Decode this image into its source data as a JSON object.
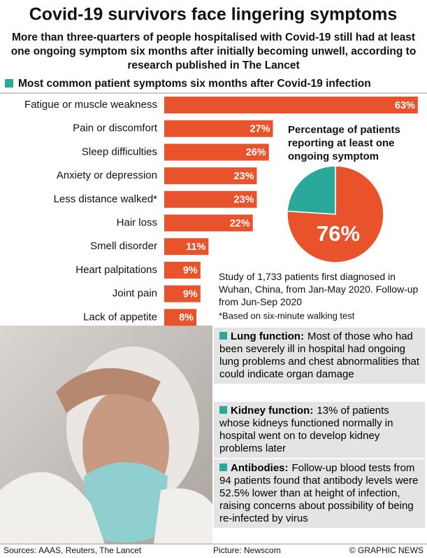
{
  "title": "Covid-19 survivors face lingering symptoms",
  "subtitle": "More than three-quarters of people hospitalised with Covid-19 still had at least one ongoing symptom six months after initially becoming unwell, according to research published in The Lancet",
  "chart_data": [
    {
      "type": "bar",
      "title": "Most common patient symptoms six months after Covid-19 infection",
      "categories": [
        "Fatigue or muscle weakness",
        "Pain or discomfort",
        "Sleep difficulties",
        "Anxiety or depression",
        "Less distance walked*",
        "Hair loss",
        "Smell disorder",
        "Heart palpitations",
        "Joint pain",
        "Lack of appetite"
      ],
      "values": [
        63,
        27,
        26,
        23,
        23,
        22,
        11,
        9,
        9,
        8
      ],
      "value_labels": [
        "63%",
        "27%",
        "26%",
        "23%",
        "23%",
        "22%",
        "11%",
        "9%",
        "9%",
        "8%"
      ],
      "color": "#e8532b"
    },
    {
      "type": "pie",
      "title": "Percentage of patients reporting at least one ongoing symptom",
      "values": [
        76,
        24
      ],
      "value_labels": [
        "76%",
        null
      ],
      "colors": [
        "#e8532b",
        "#2aa89a"
      ]
    }
  ],
  "notes": {
    "study": "Study of 1,733 patients first diagnosed in Wuhan, China, from Jan-May 2020. Follow-up from Jun-Sep 2020",
    "footnote": "*Based on six-minute walking test"
  },
  "info_boxes": [
    {
      "heading": "Lung function:",
      "body": "Most of those who had been severely ill in hospital had ongoing lung problems and chest abnormalities that could indicate organ damage"
    },
    {
      "heading": "Kidney function:",
      "body": "13% of patients whose kidneys functioned normally in hospital went on to develop kidney problems later"
    },
    {
      "heading": "Antibodies:",
      "body": "Follow-up blood tests from 94 patients found that antibody levels were 52.5% lower than at height of infection, raising concerns about possibility of being re-infected by virus"
    }
  ],
  "footer": {
    "sources": "Sources: AAAS, Reuters, The Lancet",
    "picture": "Picture: Newscom",
    "credit": "© GRAPHIC NEWS"
  }
}
